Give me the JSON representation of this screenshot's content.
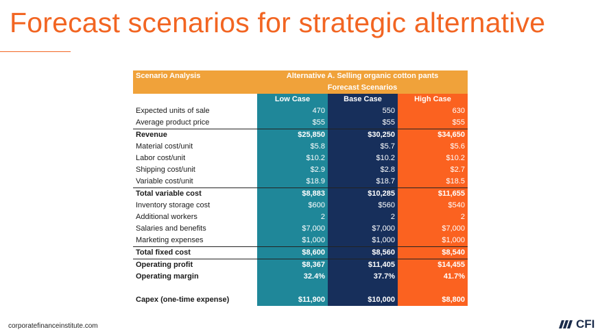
{
  "title": "Forecast scenarios for strategic alternative",
  "table": {
    "header_left": "Scenario Analysis",
    "header_alt": "Alternative A. Selling organic cotton pants",
    "header_sub": "Forecast Scenarios",
    "cases": {
      "low": "Low Case",
      "base": "Base Case",
      "high": "High Case"
    },
    "rows": [
      {
        "label": "Expected units of sale",
        "low": "470",
        "base": "550",
        "high": "630"
      },
      {
        "label": "Average product price",
        "low": "$55",
        "base": "$55",
        "high": "$55"
      },
      {
        "label": "Revenue",
        "low": "$25,850",
        "base": "$30,250",
        "high": "$34,650"
      },
      {
        "label": "Material cost/unit",
        "low": "$5.8",
        "base": "$5.7",
        "high": "$5.6"
      },
      {
        "label": "Labor cost/unit",
        "low": "$10.2",
        "base": "$10.2",
        "high": "$10.2"
      },
      {
        "label": "Shipping cost/unit",
        "low": "$2.9",
        "base": "$2.8",
        "high": "$2.7"
      },
      {
        "label": "Variable cost/unit",
        "low": "$18.9",
        "base": "$18.7",
        "high": "$18.5"
      },
      {
        "label": "Total variable cost",
        "low": "$8,883",
        "base": "$10,285",
        "high": "$11,655"
      },
      {
        "label": "Inventory storage cost",
        "low": "$600",
        "base": "$560",
        "high": "$540"
      },
      {
        "label": "Additional workers",
        "low": "2",
        "base": "2",
        "high": "2"
      },
      {
        "label": "Salaries and benefits",
        "low": "$7,000",
        "base": "$7,000",
        "high": "$7,000"
      },
      {
        "label": "Marketing expenses",
        "low": "$1,000",
        "base": "$1,000",
        "high": "$1,000"
      },
      {
        "label": "Total fixed cost",
        "low": "$8,600",
        "base": "$8,560",
        "high": "$8,540"
      },
      {
        "label": "Operating profit",
        "low": "$8,367",
        "base": "$11,405",
        "high": "$14,455"
      },
      {
        "label": "Operating margin",
        "low": "32.4%",
        "base": "37.7%",
        "high": "41.7%"
      },
      {
        "label": "Capex (one-time expense)",
        "low": "$11,900",
        "base": "$10,000",
        "high": "$8,800"
      }
    ]
  },
  "footer": {
    "url": "corporatefinanceinstitute.com",
    "logo_text": "CFI"
  },
  "colors": {
    "title": "#f26522",
    "header": "#f0a23a",
    "low": "#1f8799",
    "base": "#172f5b",
    "high": "#fb6220"
  }
}
